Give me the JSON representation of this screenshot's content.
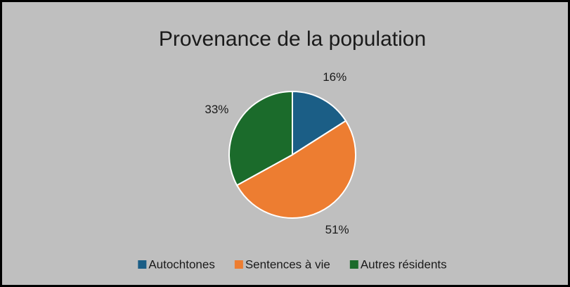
{
  "chart_data": {
    "type": "pie",
    "title": "Provenance de la population",
    "categories": [
      "Autochtones",
      "Sentences à vie",
      "Autres résidents"
    ],
    "values": [
      16,
      51,
      33
    ],
    "value_labels": [
      "16%",
      "51%",
      "33%"
    ],
    "colors": [
      "#1b5e86",
      "#ed7d31",
      "#1b6b2b"
    ],
    "legend": "bottom"
  }
}
